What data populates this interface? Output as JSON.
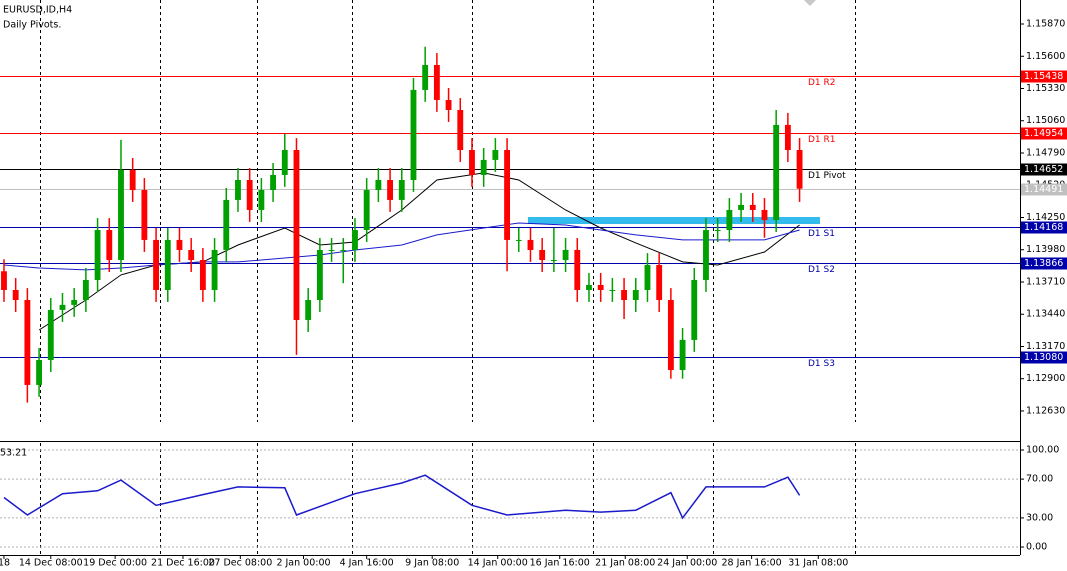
{
  "chart_data": {
    "type": "candlestick",
    "title": "EURUSD,ID,H4",
    "subtitle": "Daily Pivots.",
    "up_color": "#00a000",
    "down_color": "#ff0000",
    "xlim": [
      -0.34,
      86.84
    ],
    "ylim": [
      1.12387,
      1.16071
    ],
    "yticks": [
      {
        "value": 1.1587,
        "label": "1.15870"
      },
      {
        "value": 1.156,
        "label": "1.15600"
      },
      {
        "value": 1.1533,
        "label": "1.15330"
      },
      {
        "value": 1.1506,
        "label": "1.15060"
      },
      {
        "value": 1.1479,
        "label": "1.14790"
      },
      {
        "value": 1.1452,
        "label": "1.14520"
      },
      {
        "value": 1.1425,
        "label": "1.14250"
      },
      {
        "value": 1.1398,
        "label": "1.13980"
      },
      {
        "value": 1.1371,
        "label": "1.13710"
      },
      {
        "value": 1.1344,
        "label": "1.13440"
      },
      {
        "value": 1.1317,
        "label": "1.13170"
      },
      {
        "value": 1.129,
        "label": "1.12900"
      },
      {
        "value": 1.1263,
        "label": "1.12630"
      }
    ],
    "xticks": [
      {
        "value": 0,
        "label": "18"
      },
      {
        "value": 4,
        "label": "14 Dec 08:00"
      },
      {
        "value": 9.5,
        "label": "19 Dec 00:00"
      },
      {
        "value": 15.3,
        "label": "21 Dec 16:00"
      },
      {
        "value": 20.2,
        "label": "27 Dec 08:00"
      },
      {
        "value": 25.6,
        "label": "2 Jan 00:00"
      },
      {
        "value": 31,
        "label": "4 Jan 16:00"
      },
      {
        "value": 36.6,
        "label": "9 Jan 08:00"
      },
      {
        "value": 42.2,
        "label": "14 Jan 00:00"
      },
      {
        "value": 47.5,
        "label": "16 Jan 16:00"
      },
      {
        "value": 53.1,
        "label": "21 Jan 08:00"
      },
      {
        "value": 58.4,
        "label": "24 Jan 00:00"
      },
      {
        "value": 63.9,
        "label": "28 Jan 16:00"
      },
      {
        "value": 69.6,
        "label": "31 Jan 08:00"
      }
    ],
    "open": [
      1.138,
      1.13643,
      1.13559,
      1.12848,
      1.13057,
      1.13476,
      1.13518,
      1.13559,
      1.13727,
      1.14145,
      1.13894,
      1.14648,
      1.1448,
      1.14062,
      1.13643,
      1.14062,
      1.13978,
      1.13894,
      1.13643,
      1.13978,
      1.14397,
      1.14564,
      1.14313,
      1.1448,
      1.14606,
      1.14815,
      1.13392,
      1.13559,
      1.13978,
      1.13978,
      1.13978,
      1.14145,
      1.1448,
      1.14564,
      1.14397,
      1.14564,
      1.15318,
      1.15527,
      1.15234,
      1.1515,
      1.14815,
      1.14606,
      1.14732,
      1.14815,
      1.14062,
      1.14062,
      1.13978,
      1.13894,
      1.13894,
      1.13978,
      1.13643,
      1.13685,
      1.13643,
      1.13643,
      1.13559,
      1.13643,
      1.13852,
      1.13559,
      1.12973,
      1.13225,
      1.13727,
      1.14145,
      1.14145,
      1.14313,
      1.14355,
      1.14313,
      1.14229,
      1.15025,
      1.14815
    ],
    "high": [
      1.139,
      1.13743,
      1.13659,
      1.13157,
      1.13576,
      1.13618,
      1.13659,
      1.13827,
      1.14245,
      1.14245,
      1.149,
      1.14748,
      1.1458,
      1.14162,
      1.14162,
      1.14162,
      1.14078,
      1.13994,
      1.14078,
      1.14497,
      1.14664,
      1.14664,
      1.1458,
      1.14706,
      1.1495,
      1.14915,
      1.13659,
      1.14078,
      1.14078,
      1.14078,
      1.14245,
      1.1458,
      1.14664,
      1.14664,
      1.14664,
      1.15418,
      1.1568,
      1.15627,
      1.15334,
      1.1525,
      1.14915,
      1.14832,
      1.14915,
      1.14915,
      1.14162,
      1.14162,
      1.14078,
      1.14162,
      1.14078,
      1.14078,
      1.13785,
      1.13785,
      1.13743,
      1.13743,
      1.13743,
      1.13952,
      1.13952,
      1.13659,
      1.13325,
      1.13827,
      1.14245,
      1.14245,
      1.14413,
      1.14455,
      1.14455,
      1.14413,
      1.1515,
      1.15125,
      1.14915
    ],
    "low": [
      1.13543,
      1.13459,
      1.127,
      1.12748,
      1.12957,
      1.13376,
      1.13418,
      1.13459,
      1.13627,
      1.13794,
      1.13794,
      1.1438,
      1.13962,
      1.13543,
      1.13543,
      1.13878,
      1.13794,
      1.13543,
      1.13543,
      1.13878,
      1.14297,
      1.14213,
      1.14213,
      1.1438,
      1.14506,
      1.131,
      1.13292,
      1.13459,
      1.13878,
      1.137,
      1.13878,
      1.14045,
      1.1438,
      1.14297,
      1.14297,
      1.14464,
      1.15218,
      1.15134,
      1.1505,
      1.14715,
      1.14506,
      1.14506,
      1.14632,
      1.138,
      1.13962,
      1.13878,
      1.13794,
      1.13794,
      1.13794,
      1.13543,
      1.13543,
      1.13543,
      1.13543,
      1.134,
      1.13459,
      1.13543,
      1.13459,
      1.129,
      1.129,
      1.13125,
      1.13627,
      1.14045,
      1.14045,
      1.14213,
      1.14213,
      1.1408,
      1.14129,
      1.14715,
      1.1438
    ],
    "close": [
      1.13643,
      1.13559,
      1.12848,
      1.13057,
      1.13476,
      1.13518,
      1.13559,
      1.13727,
      1.14145,
      1.13894,
      1.14648,
      1.1448,
      1.14062,
      1.13643,
      1.14062,
      1.13978,
      1.13894,
      1.13643,
      1.13978,
      1.14397,
      1.14564,
      1.14313,
      1.1448,
      1.14606,
      1.14815,
      1.13392,
      1.13559,
      1.13978,
      1.13978,
      1.13978,
      1.14145,
      1.1448,
      1.14564,
      1.14397,
      1.14564,
      1.15318,
      1.15527,
      1.15234,
      1.1515,
      1.14815,
      1.14606,
      1.14732,
      1.14815,
      1.14062,
      1.14062,
      1.13978,
      1.13894,
      1.13894,
      1.13978,
      1.13643,
      1.13685,
      1.13643,
      1.13643,
      1.13559,
      1.13643,
      1.13852,
      1.13559,
      1.12973,
      1.13225,
      1.13727,
      1.14145,
      1.14145,
      1.14313,
      1.14355,
      1.14313,
      1.14229,
      1.15025,
      1.14815,
      1.14491
    ],
    "current_price": {
      "value": 1.14491,
      "label": "1.14491"
    },
    "levels": [
      {
        "name": "D1 R2",
        "value": 1.15438,
        "value_label": "1.15438",
        "color": "#ff0000"
      },
      {
        "name": "D1 R1",
        "value": 1.14954,
        "value_label": "1.14954",
        "color": "#ff0000"
      },
      {
        "name": "D1 Pivot",
        "value": 1.14652,
        "value_label": "1.14652",
        "color": "#000000"
      },
      {
        "name": "D1 S1",
        "value": 1.14168,
        "value_label": "1.14168",
        "color": "#0000aa"
      },
      {
        "name": "D1 S2",
        "value": 1.13866,
        "value_label": "1.13866",
        "color": "#0000aa"
      },
      {
        "name": "D1 S3",
        "value": 1.1308,
        "value_label": "1.13080",
        "color": "#0000aa"
      }
    ],
    "moving_averages": [
      {
        "color": "#000000",
        "x": [
          3,
          7,
          10,
          13,
          17,
          20,
          24,
          27,
          30,
          34,
          37,
          41,
          44,
          48,
          51,
          54,
          58,
          61,
          65,
          68
        ],
        "values": [
          1.13308,
          1.13559,
          1.13769,
          1.13852,
          1.13878,
          1.1402,
          1.14162,
          1.1402,
          1.14045,
          1.14313,
          1.14564,
          1.14623,
          1.14564,
          1.14313,
          1.14162,
          1.14037,
          1.13878,
          1.13852,
          1.13961,
          1.14187
        ]
      },
      {
        "color": "#1a1acc",
        "x": [
          0,
          3,
          7,
          10,
          13,
          17,
          20,
          24,
          27,
          30,
          34,
          37,
          41,
          44,
          48,
          51,
          54,
          58,
          61,
          65,
          68
        ],
        "values": [
          1.13852,
          1.13827,
          1.13811,
          1.13827,
          1.13852,
          1.13878,
          1.13878,
          1.13911,
          1.13936,
          1.13978,
          1.1402,
          1.14104,
          1.14162,
          1.14204,
          1.14187,
          1.14145,
          1.14104,
          1.14062,
          1.14062,
          1.14062,
          1.14145
        ]
      }
    ],
    "rsi": {
      "color": "#1a1acc",
      "ylim": [
        -8.2,
        107.2
      ],
      "yticks": [
        {
          "value": 100,
          "label": "100.00"
        },
        {
          "value": 70,
          "label": "70.00"
        },
        {
          "value": 30,
          "label": "30.00"
        },
        {
          "value": 0,
          "label": "0.00"
        }
      ],
      "x": [
        0,
        2,
        5,
        8,
        10,
        13,
        17,
        20,
        24,
        25,
        30,
        34,
        36,
        40,
        43,
        48,
        51,
        54,
        57,
        58,
        60,
        65,
        67,
        68
      ],
      "values": [
        51,
        33,
        55,
        58,
        69,
        43,
        54,
        62,
        61,
        33,
        55,
        66,
        74,
        43,
        33,
        38,
        36,
        38,
        56,
        30,
        62,
        62,
        72,
        53.21
      ]
    }
  }
}
